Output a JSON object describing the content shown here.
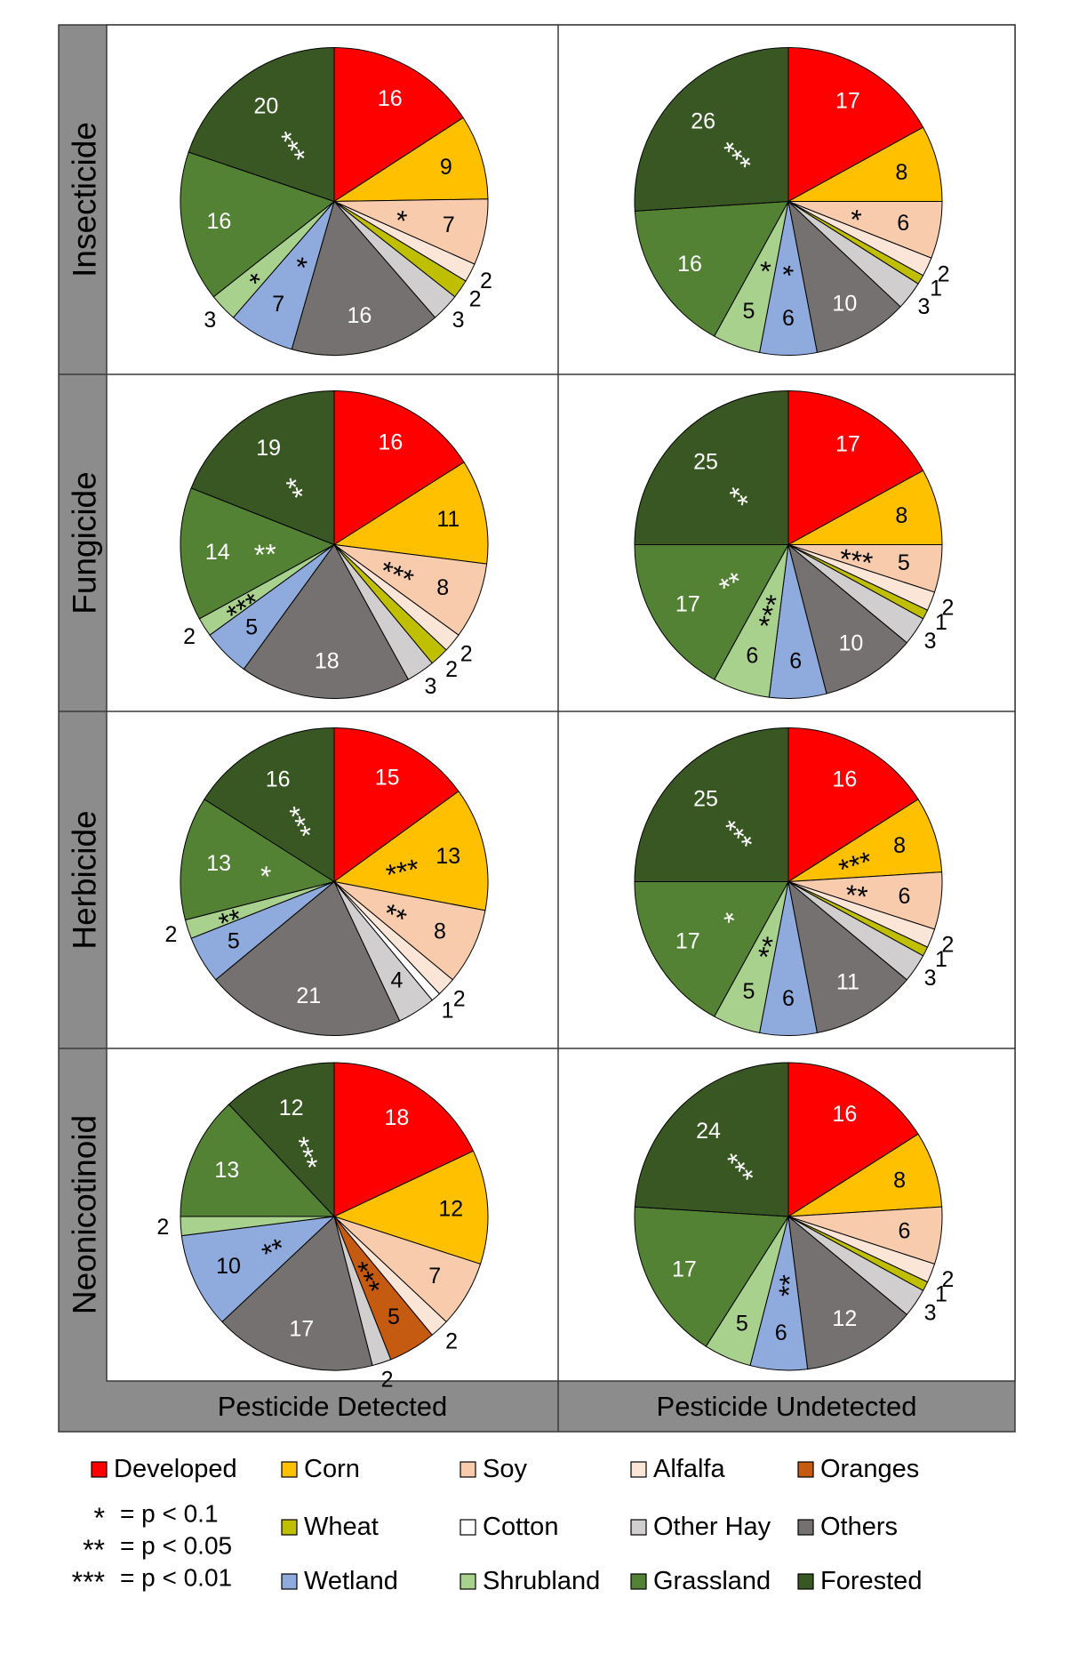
{
  "row_labels": [
    "Insecticide",
    "Fungicide",
    "Herbicide",
    "Neonicotinoid"
  ],
  "column_labels": [
    "Pesticide Detected",
    "Pesticide Undetected"
  ],
  "categories": [
    "Developed",
    "Corn",
    "Soy",
    "Alfalfa",
    "Oranges",
    "Wheat",
    "Cotton",
    "Other Hay",
    "Others",
    "Wetland",
    "Shrubland",
    "Grassland",
    "Forested"
  ],
  "colors": {
    "Developed": "#ff0000",
    "Corn": "#ffc000",
    "Soy": "#f8cbad",
    "Alfalfa": "#fbe5d6",
    "Oranges": "#c55a11",
    "Wheat": "#bfbf00",
    "Cotton": "#ffffff",
    "Other Hay": "#d0cece",
    "Others": "#767171",
    "Wetland": "#8faadc",
    "Shrubland": "#a9d18e",
    "Grassland": "#548235",
    "Forested": "#385723"
  },
  "significance_legend": [
    {
      "stars": "*",
      "text": "= p < 0.1"
    },
    {
      "stars": "**",
      "text": "= p < 0.05"
    },
    {
      "stars": "***",
      "text": "= p < 0.01"
    }
  ],
  "chart_data": [
    {
      "type": "pie",
      "row": "Insecticide",
      "column": "Pesticide Detected",
      "slices": [
        {
          "category": "Developed",
          "value": 16,
          "label": "16",
          "stars": ""
        },
        {
          "category": "Corn",
          "value": 9,
          "label": "9",
          "stars": ""
        },
        {
          "category": "Soy",
          "value": 7,
          "label": "7",
          "stars": "*"
        },
        {
          "category": "Alfalfa",
          "value": 2,
          "label": "2",
          "stars": ""
        },
        {
          "category": "Wheat",
          "value": 2,
          "label": "2",
          "stars": ""
        },
        {
          "category": "Other Hay",
          "value": 3,
          "label": "3",
          "stars": ""
        },
        {
          "category": "Others",
          "value": 16,
          "label": "16",
          "stars": ""
        },
        {
          "category": "Wetland",
          "value": 7,
          "label": "7",
          "stars": "*"
        },
        {
          "category": "Shrubland",
          "value": 3,
          "label": "3",
          "stars": "*"
        },
        {
          "category": "Grassland",
          "value": 16,
          "label": "16",
          "stars": ""
        },
        {
          "category": "Forested",
          "value": 20,
          "label": "20",
          "stars": "***"
        }
      ]
    },
    {
      "type": "pie",
      "row": "Insecticide",
      "column": "Pesticide Undetected",
      "slices": [
        {
          "category": "Developed",
          "value": 17,
          "label": "17",
          "stars": ""
        },
        {
          "category": "Corn",
          "value": 8,
          "label": "8",
          "stars": ""
        },
        {
          "category": "Soy",
          "value": 6,
          "label": "6",
          "stars": "*"
        },
        {
          "category": "Alfalfa",
          "value": 2,
          "label": "2",
          "stars": ""
        },
        {
          "category": "Wheat",
          "value": 1,
          "label": "1",
          "stars": ""
        },
        {
          "category": "Other Hay",
          "value": 3,
          "label": "3",
          "stars": ""
        },
        {
          "category": "Others",
          "value": 10,
          "label": "10",
          "stars": ""
        },
        {
          "category": "Wetland",
          "value": 6,
          "label": "6",
          "stars": "*"
        },
        {
          "category": "Shrubland",
          "value": 5,
          "label": "5",
          "stars": "*"
        },
        {
          "category": "Grassland",
          "value": 16,
          "label": "16",
          "stars": ""
        },
        {
          "category": "Forested",
          "value": 26,
          "label": "26",
          "stars": "***"
        }
      ]
    },
    {
      "type": "pie",
      "row": "Fungicide",
      "column": "Pesticide Detected",
      "slices": [
        {
          "category": "Developed",
          "value": 16,
          "label": "16",
          "stars": ""
        },
        {
          "category": "Corn",
          "value": 11,
          "label": "11",
          "stars": ""
        },
        {
          "category": "Soy",
          "value": 8,
          "label": "8",
          "stars": "***"
        },
        {
          "category": "Alfalfa",
          "value": 2,
          "label": "2",
          "stars": ""
        },
        {
          "category": "Wheat",
          "value": 2,
          "label": "2",
          "stars": ""
        },
        {
          "category": "Other Hay",
          "value": 3,
          "label": "3",
          "stars": ""
        },
        {
          "category": "Others",
          "value": 18,
          "label": "18",
          "stars": ""
        },
        {
          "category": "Wetland",
          "value": 5,
          "label": "5",
          "stars": ""
        },
        {
          "category": "Shrubland",
          "value": 2,
          "label": "2",
          "stars": "***"
        },
        {
          "category": "Grassland",
          "value": 14,
          "label": "14",
          "stars": "**"
        },
        {
          "category": "Forested",
          "value": 19,
          "label": "19",
          "stars": "**"
        }
      ]
    },
    {
      "type": "pie",
      "row": "Fungicide",
      "column": "Pesticide Undetected",
      "slices": [
        {
          "category": "Developed",
          "value": 17,
          "label": "17",
          "stars": ""
        },
        {
          "category": "Corn",
          "value": 8,
          "label": "8",
          "stars": ""
        },
        {
          "category": "Soy",
          "value": 5,
          "label": "5",
          "stars": "***"
        },
        {
          "category": "Alfalfa",
          "value": 2,
          "label": "2",
          "stars": ""
        },
        {
          "category": "Wheat",
          "value": 1,
          "label": "1",
          "stars": ""
        },
        {
          "category": "Other Hay",
          "value": 3,
          "label": "3",
          "stars": ""
        },
        {
          "category": "Others",
          "value": 10,
          "label": "10",
          "stars": ""
        },
        {
          "category": "Wetland",
          "value": 6,
          "label": "6",
          "stars": ""
        },
        {
          "category": "Shrubland",
          "value": 6,
          "label": "6",
          "stars": "***"
        },
        {
          "category": "Grassland",
          "value": 17,
          "label": "17",
          "stars": "**"
        },
        {
          "category": "Forested",
          "value": 25,
          "label": "25",
          "stars": "**"
        }
      ]
    },
    {
      "type": "pie",
      "row": "Herbicide",
      "column": "Pesticide Detected",
      "slices": [
        {
          "category": "Developed",
          "value": 15,
          "label": "15",
          "stars": ""
        },
        {
          "category": "Corn",
          "value": 13,
          "label": "13",
          "stars": "***"
        },
        {
          "category": "Soy",
          "value": 8,
          "label": "8",
          "stars": "**"
        },
        {
          "category": "Alfalfa",
          "value": 2,
          "label": "2",
          "stars": ""
        },
        {
          "category": "Cotton",
          "value": 1,
          "label": "1",
          "stars": ""
        },
        {
          "category": "Other Hay",
          "value": 4,
          "label": "4",
          "stars": ""
        },
        {
          "category": "Others",
          "value": 21,
          "label": "21",
          "stars": ""
        },
        {
          "category": "Wetland",
          "value": 5,
          "label": "5",
          "stars": ""
        },
        {
          "category": "Shrubland",
          "value": 2,
          "label": "2",
          "stars": "**"
        },
        {
          "category": "Grassland",
          "value": 13,
          "label": "13",
          "stars": "*"
        },
        {
          "category": "Forested",
          "value": 16,
          "label": "16",
          "stars": "***"
        }
      ]
    },
    {
      "type": "pie",
      "row": "Herbicide",
      "column": "Pesticide Undetected",
      "slices": [
        {
          "category": "Developed",
          "value": 16,
          "label": "16",
          "stars": ""
        },
        {
          "category": "Corn",
          "value": 8,
          "label": "8",
          "stars": "***"
        },
        {
          "category": "Soy",
          "value": 6,
          "label": "6",
          "stars": "**"
        },
        {
          "category": "Alfalfa",
          "value": 2,
          "label": "2",
          "stars": ""
        },
        {
          "category": "Wheat",
          "value": 1,
          "label": "1",
          "stars": ""
        },
        {
          "category": "Other Hay",
          "value": 3,
          "label": "3",
          "stars": ""
        },
        {
          "category": "Others",
          "value": 11,
          "label": "11",
          "stars": ""
        },
        {
          "category": "Wetland",
          "value": 6,
          "label": "6",
          "stars": ""
        },
        {
          "category": "Shrubland",
          "value": 5,
          "label": "5",
          "stars": "**"
        },
        {
          "category": "Grassland",
          "value": 17,
          "label": "17",
          "stars": "*"
        },
        {
          "category": "Forested",
          "value": 25,
          "label": "25",
          "stars": "***"
        }
      ]
    },
    {
      "type": "pie",
      "row": "Neonicotinoid",
      "column": "Pesticide Detected",
      "slices": [
        {
          "category": "Developed",
          "value": 18,
          "label": "18",
          "stars": ""
        },
        {
          "category": "Corn",
          "value": 12,
          "label": "12",
          "stars": ""
        },
        {
          "category": "Soy",
          "value": 7,
          "label": "7",
          "stars": ""
        },
        {
          "category": "Alfalfa",
          "value": 2,
          "label": "2",
          "stars": ""
        },
        {
          "category": "Oranges",
          "value": 5,
          "label": "5",
          "stars": "***"
        },
        {
          "category": "Other Hay",
          "value": 2,
          "label": "2",
          "stars": ""
        },
        {
          "category": "Others",
          "value": 17,
          "label": "17",
          "stars": ""
        },
        {
          "category": "Wetland",
          "value": 10,
          "label": "10",
          "stars": "**"
        },
        {
          "category": "Shrubland",
          "value": 2,
          "label": "2",
          "stars": ""
        },
        {
          "category": "Grassland",
          "value": 13,
          "label": "13",
          "stars": ""
        },
        {
          "category": "Forested",
          "value": 12,
          "label": "12",
          "stars": "***"
        }
      ]
    },
    {
      "type": "pie",
      "row": "Neonicotinoid",
      "column": "Pesticide Undetected",
      "slices": [
        {
          "category": "Developed",
          "value": 16,
          "label": "16",
          "stars": ""
        },
        {
          "category": "Corn",
          "value": 8,
          "label": "8",
          "stars": ""
        },
        {
          "category": "Soy",
          "value": 6,
          "label": "6",
          "stars": ""
        },
        {
          "category": "Alfalfa",
          "value": 2,
          "label": "2",
          "stars": ""
        },
        {
          "category": "Wheat",
          "value": 1,
          "label": "1",
          "stars": ""
        },
        {
          "category": "Other Hay",
          "value": 3,
          "label": "3",
          "stars": ""
        },
        {
          "category": "Others",
          "value": 12,
          "label": "12",
          "stars": ""
        },
        {
          "category": "Wetland",
          "value": 6,
          "label": "6",
          "stars": "**"
        },
        {
          "category": "Shrubland",
          "value": 5,
          "label": "5",
          "stars": ""
        },
        {
          "category": "Grassland",
          "value": 17,
          "label": "17",
          "stars": ""
        },
        {
          "category": "Forested",
          "value": 24,
          "label": "24",
          "stars": "***"
        }
      ]
    }
  ]
}
